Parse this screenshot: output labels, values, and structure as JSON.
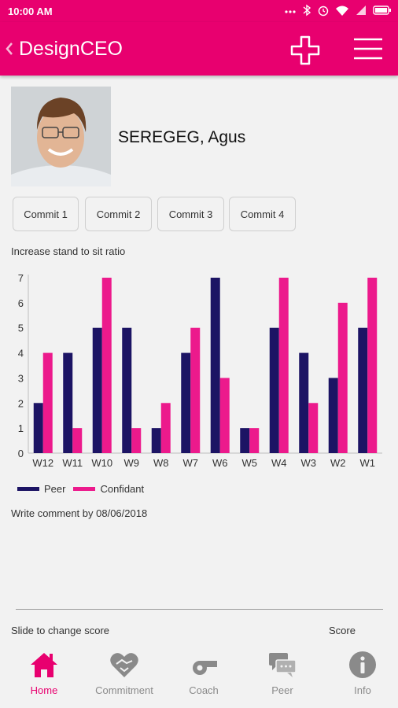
{
  "status_bar": {
    "time": "10:00 AM",
    "battery_icon": "battery-icon",
    "wifi_icon": "wifi-icon",
    "signal_icon": "signal-icon"
  },
  "app_bar": {
    "title": "DesignCEO",
    "back_icon": "chevron-left-icon",
    "add_icon": "plus-icon",
    "menu_icon": "hamburger-menu-icon"
  },
  "profile": {
    "name": "SEREGEG, Agus",
    "avatar_icon": "avatar-photo"
  },
  "commit_tabs": [
    {
      "label": "Commit 1"
    },
    {
      "label": "Commit 2"
    },
    {
      "label": "Commit 3"
    },
    {
      "label": "Commit 4"
    }
  ],
  "colors": {
    "accent": "#e8006f",
    "peer": "#1c1464",
    "confidant": "#ec1a8c"
  },
  "chart_data": {
    "type": "bar",
    "title": "Increase stand to sit ratio",
    "categories": [
      "W12",
      "W11",
      "W10",
      "W9",
      "W8",
      "W7",
      "W6",
      "W5",
      "W4",
      "W3",
      "W2",
      "W1"
    ],
    "series": [
      {
        "name": "Peer",
        "values": [
          2,
          4,
          5,
          5,
          1,
          4,
          7,
          1,
          5,
          4,
          3,
          5
        ]
      },
      {
        "name": "Confidant",
        "values": [
          4,
          1,
          7,
          1,
          2,
          5,
          3,
          1,
          7,
          2,
          6,
          7
        ]
      }
    ],
    "yticks": [
      "0",
      "1",
      "2",
      "3",
      "4",
      "5",
      "6",
      "7"
    ],
    "ylim": [
      0,
      7
    ],
    "legend_position": "bottom-left",
    "grid": false
  },
  "comment": {
    "prompt": "Write comment by 08/06/2018"
  },
  "score": {
    "slide_label": "Slide to change score",
    "score_label": "Score"
  },
  "bottom_nav": [
    {
      "label": "Home",
      "icon": "home-icon",
      "active": true
    },
    {
      "label": "Commitment",
      "icon": "heart-handshake-icon",
      "active": false
    },
    {
      "label": "Coach",
      "icon": "whistle-icon",
      "active": false
    },
    {
      "label": "Peer",
      "icon": "chat-bubbles-icon",
      "active": false
    },
    {
      "label": "Info",
      "icon": "info-icon",
      "active": false
    }
  ]
}
